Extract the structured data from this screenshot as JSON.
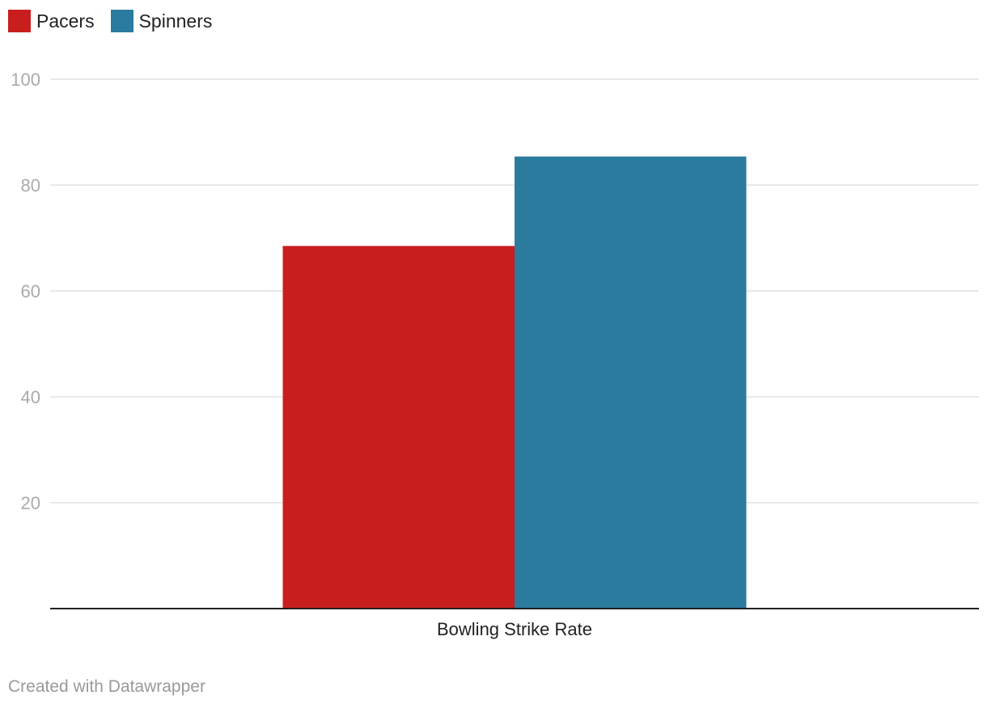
{
  "chart_data": {
    "type": "bar",
    "title": "",
    "xlabel": "",
    "ylabel": "",
    "categories": [
      "Bowling Strike Rate"
    ],
    "series": [
      {
        "name": "Pacers",
        "color": "#c91e1e",
        "values": [
          68.5
        ]
      },
      {
        "name": "Spinners",
        "color": "#2b7b9f",
        "values": [
          85.4
        ]
      }
    ],
    "ylim": [
      0,
      100
    ],
    "yticks": [
      20,
      40,
      60,
      80,
      100
    ],
    "grid": true,
    "legend_position": "top-left"
  },
  "footer": {
    "credit": "Created with Datawrapper"
  }
}
